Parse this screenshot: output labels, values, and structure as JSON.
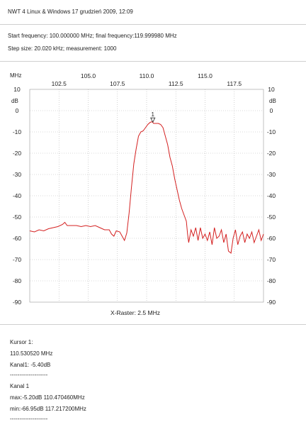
{
  "header": {
    "title": "NWT 4 Linux & Windows  17 grudzień 2009, 12:09",
    "frequency_line": "Start frequency: 100.000000 MHz; final frequency:119.999980 MHz",
    "step_line": "Step size: 20.020 kHz; measurement: 1000"
  },
  "chart_data": {
    "type": "line",
    "xlabel_top_left": "MHz",
    "ylabel_left": "dB",
    "ylabel_right": "dB",
    "xlim": [
      100.0,
      119.99998
    ],
    "ylim": [
      -90,
      10
    ],
    "x_ticks_upper": [
      "105.0",
      "110.0",
      "115.0"
    ],
    "x_ticks_lower": [
      "102.5",
      "107.5",
      "112.5",
      "117.5"
    ],
    "y_ticks": [
      "10",
      "0",
      "-10",
      "-20",
      "-30",
      "-40",
      "-50",
      "-60",
      "-70",
      "-80",
      "-90"
    ],
    "grid": true,
    "raster_label": "X-Raster: 2.5 MHz",
    "marker_label": "1",
    "marker": {
      "x": 110.53052,
      "y": -5.4
    },
    "series": [
      {
        "color": "#d42020",
        "points": [
          [
            100.0,
            -56.5
          ],
          [
            100.4,
            -57.0
          ],
          [
            100.8,
            -56.0
          ],
          [
            101.2,
            -56.5
          ],
          [
            101.6,
            -55.5
          ],
          [
            102.0,
            -55.0
          ],
          [
            102.4,
            -54.5
          ],
          [
            102.8,
            -53.5
          ],
          [
            103.0,
            -52.5
          ],
          [
            103.2,
            -54.0
          ],
          [
            103.6,
            -54.0
          ],
          [
            104.0,
            -54.0
          ],
          [
            104.4,
            -54.5
          ],
          [
            104.8,
            -54.0
          ],
          [
            105.2,
            -54.5
          ],
          [
            105.6,
            -54.0
          ],
          [
            106.0,
            -55.0
          ],
          [
            106.4,
            -56.0
          ],
          [
            106.8,
            -56.0
          ],
          [
            107.0,
            -58.0
          ],
          [
            107.2,
            -59.0
          ],
          [
            107.4,
            -56.5
          ],
          [
            107.7,
            -57.0
          ],
          [
            107.9,
            -59.0
          ],
          [
            108.1,
            -61.0
          ],
          [
            108.3,
            -57.5
          ],
          [
            108.5,
            -48.0
          ],
          [
            108.7,
            -36.0
          ],
          [
            108.9,
            -25.0
          ],
          [
            109.1,
            -18.0
          ],
          [
            109.3,
            -12.0
          ],
          [
            109.5,
            -10.0
          ],
          [
            109.7,
            -9.5
          ],
          [
            109.9,
            -8.0
          ],
          [
            110.1,
            -6.5
          ],
          [
            110.3,
            -5.5
          ],
          [
            110.47,
            -5.2
          ],
          [
            110.6,
            -6.0
          ],
          [
            110.8,
            -6.0
          ],
          [
            111.0,
            -6.0
          ],
          [
            111.2,
            -6.5
          ],
          [
            111.4,
            -8.0
          ],
          [
            111.6,
            -12.0
          ],
          [
            111.8,
            -16.0
          ],
          [
            112.0,
            -22.0
          ],
          [
            112.2,
            -26.0
          ],
          [
            112.4,
            -32.0
          ],
          [
            112.6,
            -37.0
          ],
          [
            112.8,
            -42.0
          ],
          [
            113.0,
            -46.0
          ],
          [
            113.2,
            -49.0
          ],
          [
            113.4,
            -52.0
          ],
          [
            113.5,
            -58.0
          ],
          [
            113.6,
            -62.0
          ],
          [
            113.8,
            -56.0
          ],
          [
            114.0,
            -59.0
          ],
          [
            114.2,
            -55.0
          ],
          [
            114.4,
            -61.0
          ],
          [
            114.6,
            -55.0
          ],
          [
            114.8,
            -60.0
          ],
          [
            115.0,
            -58.0
          ],
          [
            115.2,
            -61.0
          ],
          [
            115.4,
            -57.0
          ],
          [
            115.6,
            -63.0
          ],
          [
            115.8,
            -55.0
          ],
          [
            116.0,
            -60.0
          ],
          [
            116.2,
            -59.0
          ],
          [
            116.4,
            -56.0
          ],
          [
            116.6,
            -62.0
          ],
          [
            116.8,
            -58.0
          ],
          [
            117.0,
            -66.0
          ],
          [
            117.217,
            -66.95
          ],
          [
            117.4,
            -60.0
          ],
          [
            117.6,
            -56.0
          ],
          [
            117.8,
            -63.0
          ],
          [
            118.0,
            -59.0
          ],
          [
            118.2,
            -57.0
          ],
          [
            118.4,
            -62.0
          ],
          [
            118.6,
            -58.0
          ],
          [
            118.8,
            -60.0
          ],
          [
            119.0,
            -57.0
          ],
          [
            119.2,
            -62.0
          ],
          [
            119.4,
            -59.0
          ],
          [
            119.6,
            -56.0
          ],
          [
            119.8,
            -61.0
          ],
          [
            120.0,
            -58.0
          ]
        ]
      }
    ]
  },
  "cursor": {
    "title": "Kursor 1:",
    "frequency": "110.530520 MHz",
    "level": "Kanal1: -5.40dB",
    "separator": "--------------------"
  },
  "channel": {
    "title": "Kanal 1",
    "max": "max:-5.20dB 110.470460MHz",
    "min": "min:-66.95dB 117.217200MHz",
    "separator": "--------------------"
  }
}
